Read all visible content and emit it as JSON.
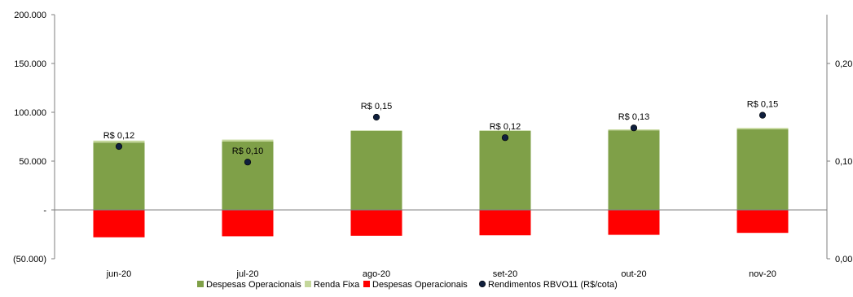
{
  "chart_data": {
    "type": "bar",
    "title": "",
    "xlabel": "",
    "ylabel": "",
    "categories": [
      "jun-20",
      "jul-20",
      "ago-20",
      "set-20",
      "out-20",
      "nov-20"
    ],
    "series": [
      {
        "name": "Despesas Operacionais",
        "kind": "bar",
        "axis": "left",
        "color": "#7fa048",
        "values": [
          69000,
          70000,
          81000,
          81000,
          81500,
          82500
        ]
      },
      {
        "name": "Renda Fixa",
        "kind": "bar",
        "axis": "left",
        "color": "#c4d79b",
        "values": [
          2000,
          2000,
          500,
          500,
          1000,
          1500
        ]
      },
      {
        "name": "Despesas Operacionais",
        "kind": "bar",
        "axis": "left",
        "color": "#ff0000",
        "values": [
          -28000,
          -27000,
          -26500,
          -26000,
          -25500,
          -23500
        ]
      },
      {
        "name": "Rendimentos RBVO11 (R$/cota)",
        "kind": "scatter",
        "axis": "right",
        "color": "#0f1f3d",
        "values": [
          0.115,
          0.099,
          0.145,
          0.124,
          0.134,
          0.147
        ],
        "labels": [
          "R$ 0,12",
          "R$ 0,10",
          "R$ 0,15",
          "R$ 0,12",
          "R$ 0,13",
          "R$ 0,15"
        ]
      }
    ],
    "y_left": {
      "ylim": [
        -50000,
        200000
      ],
      "ticks": [
        -50000,
        0,
        50000,
        100000,
        150000,
        200000
      ],
      "tick_labels": [
        "(50.000)",
        "-",
        "50.000",
        "100.000",
        "150.000",
        "200.000"
      ]
    },
    "y_right": {
      "ylim": [
        0,
        0.25
      ],
      "ticks": [
        0,
        0.1,
        0.2
      ],
      "tick_labels": [
        "0,00",
        "0,10",
        "0,20"
      ]
    },
    "legend": {
      "placement": "bottom-center",
      "entries": [
        {
          "label": "Despesas Operacionais",
          "color": "#7fa048",
          "marker": "square"
        },
        {
          "label": "Renda Fixa",
          "color": "#c4d79b",
          "marker": "square"
        },
        {
          "label": "Despesas Operacionais",
          "color": "#ff0000",
          "marker": "square"
        },
        {
          "label": "Rendimentos RBVO11 (R$/cota)",
          "color": "#0f1f3d",
          "marker": "circle"
        }
      ]
    },
    "grid": false
  }
}
